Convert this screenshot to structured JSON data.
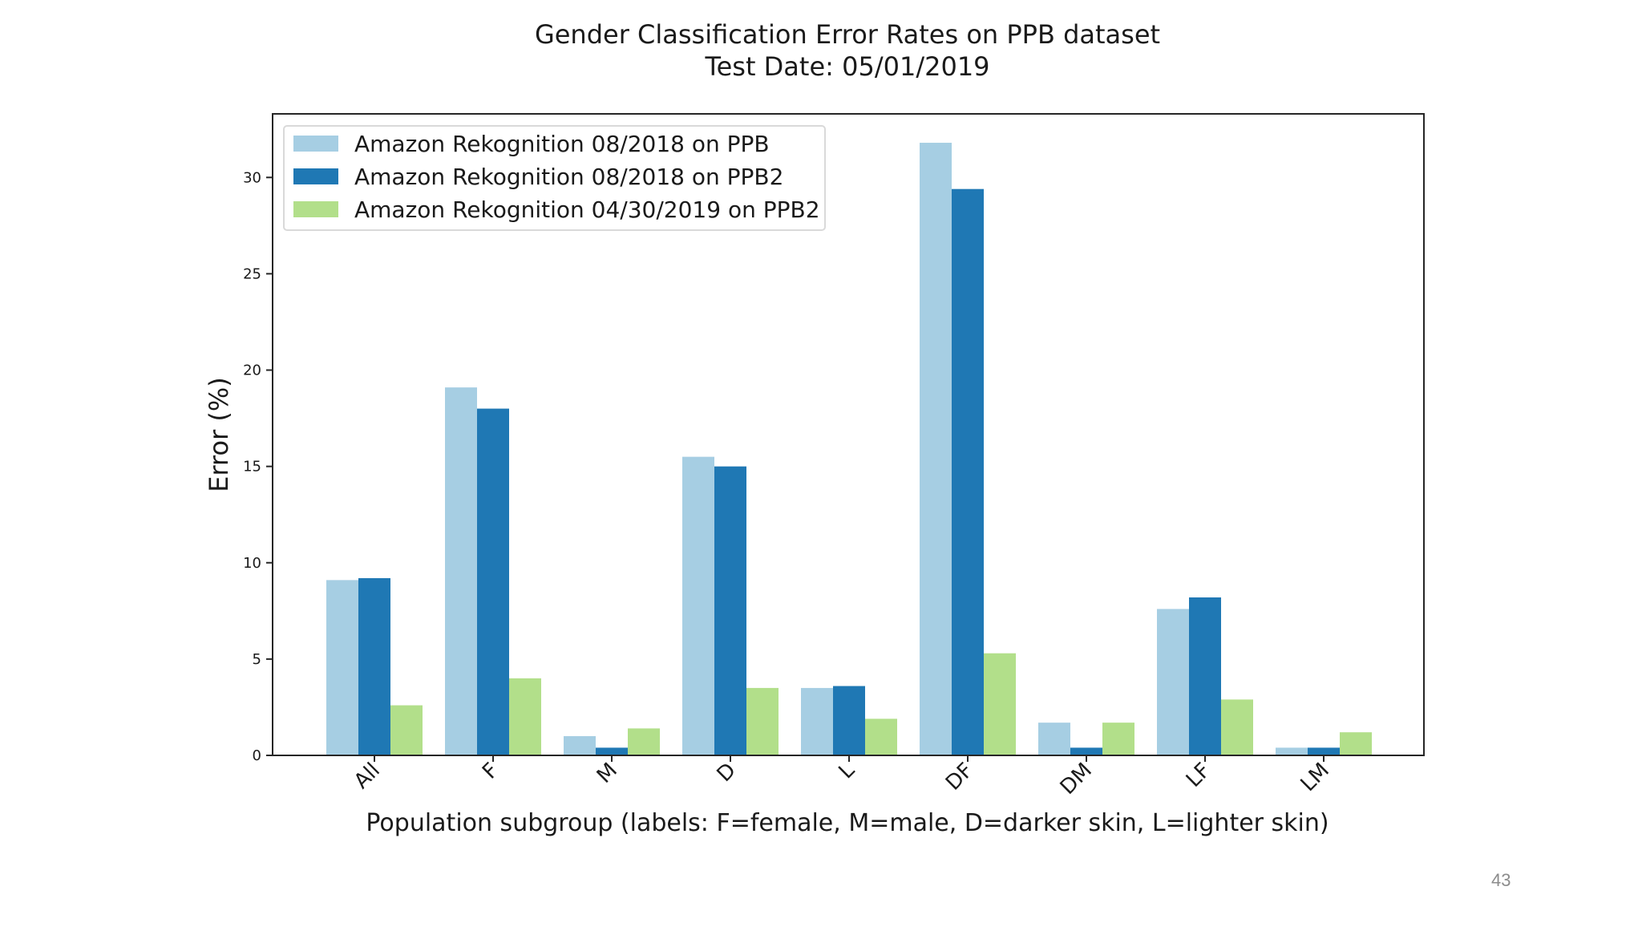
{
  "slide": {
    "page_number": "43"
  },
  "chart_data": {
    "type": "bar",
    "title": "Gender Classification Error Rates on PPB dataset",
    "subtitle": "Test Date: 05/01/2019",
    "xlabel": "Population subgroup (labels: F=female, M=male, D=darker skin, L=lighter skin)",
    "ylabel": "Error (%)",
    "ylim": [
      0,
      33.3
    ],
    "yticks": [
      0,
      5,
      10,
      15,
      20,
      25,
      30
    ],
    "categories": [
      "All",
      "F",
      "M",
      "D",
      "L",
      "DF",
      "DM",
      "LF",
      "LM"
    ],
    "series": [
      {
        "name": "Amazon Rekognition 08/2018 on PPB",
        "color": "#a6cee3",
        "values": [
          9.1,
          19.1,
          1.0,
          15.5,
          3.5,
          31.8,
          1.7,
          7.6,
          0.4
        ]
      },
      {
        "name": "Amazon Rekognition 08/2018 on PPB2",
        "color": "#1f78b4",
        "values": [
          9.2,
          18.0,
          0.4,
          15.0,
          3.6,
          29.4,
          0.4,
          8.2,
          0.4
        ]
      },
      {
        "name": "Amazon Rekognition 04/30/2019 on PPB2",
        "color": "#b2df8a",
        "values": [
          2.6,
          4.0,
          1.4,
          3.5,
          1.9,
          5.3,
          1.7,
          2.9,
          1.2
        ]
      }
    ],
    "legend": "top-left",
    "grid": false
  }
}
